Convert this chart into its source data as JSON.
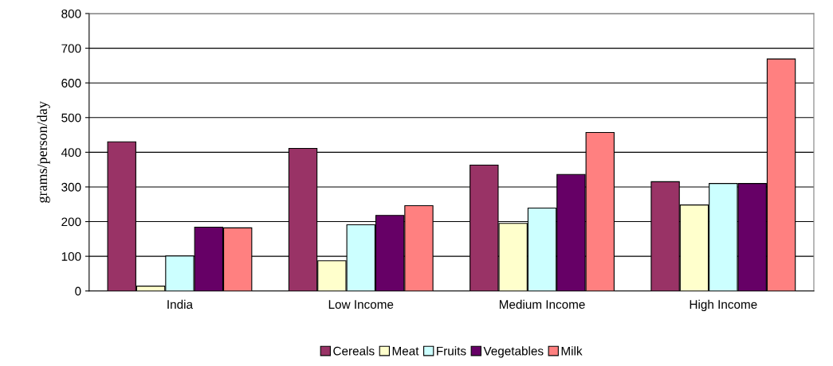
{
  "chart_data": {
    "type": "bar",
    "ylabel": "grams/person/day",
    "categories": [
      "India",
      "Low Income",
      "Medium Income",
      "High Income"
    ],
    "series": [
      {
        "name": "Cereals",
        "color": "#993366",
        "values": [
          430,
          411,
          363,
          315
        ]
      },
      {
        "name": "Meat",
        "color": "#ffffcc",
        "values": [
          14,
          87,
          195,
          248
        ]
      },
      {
        "name": "Fruits",
        "color": "#ccffff",
        "values": [
          101,
          191,
          239,
          310
        ]
      },
      {
        "name": "Vegetables",
        "color": "#660066",
        "values": [
          184,
          218,
          336,
          310
        ]
      },
      {
        "name": "Milk",
        "color": "#ff8080",
        "values": [
          182,
          246,
          457,
          669
        ]
      }
    ],
    "ylim": [
      0,
      800
    ],
    "yticks": [
      0,
      100,
      200,
      300,
      400,
      500,
      600,
      700,
      800
    ],
    "grid": "y",
    "legend": "bottom"
  }
}
